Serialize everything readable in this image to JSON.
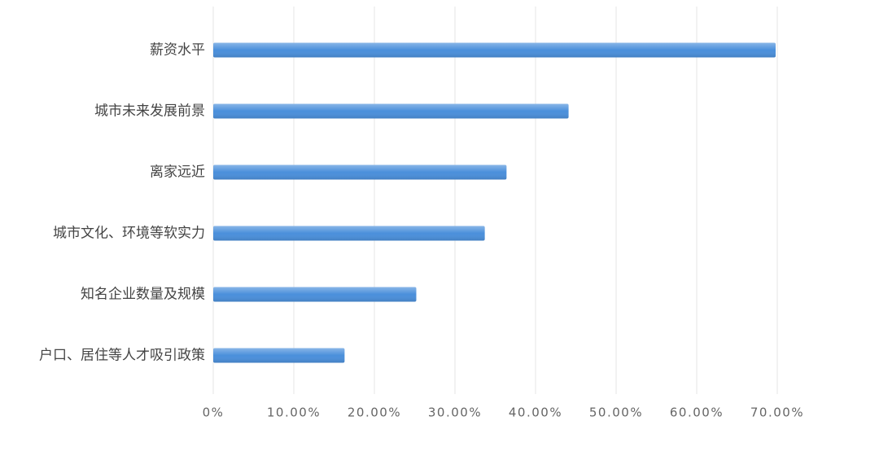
{
  "chart_data": {
    "type": "bar",
    "orientation": "horizontal",
    "categories": [
      "薪资水平",
      "城市未来发展前景",
      "离家远近",
      "城市文化、环境等软实力",
      "知名企业数量及规模",
      "户口、居住等人才吸引政策"
    ],
    "values": [
      69.8,
      44.1,
      36.4,
      33.7,
      25.2,
      16.3
    ],
    "color": "#4a8fdb",
    "xlim": [
      0,
      70
    ],
    "xticks": [
      {
        "value": 0,
        "label": "0%"
      },
      {
        "value": 10,
        "label": "10.00%"
      },
      {
        "value": 20,
        "label": "20.00%"
      },
      {
        "value": 30,
        "label": "30.00%"
      },
      {
        "value": 40,
        "label": "40.00%"
      },
      {
        "value": 50,
        "label": "50.00%"
      },
      {
        "value": 60,
        "label": "60.00%"
      },
      {
        "value": 70,
        "label": "70.00%"
      }
    ],
    "grid": true
  }
}
